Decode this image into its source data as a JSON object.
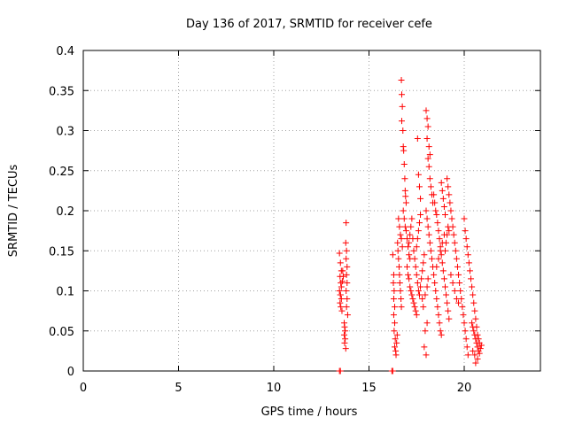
{
  "chart_data": {
    "type": "scatter",
    "title": "Day 136 of 2017, SRMTID for receiver cefe",
    "xlabel": "GPS time / hours",
    "ylabel": "SRMTID / TECUs",
    "xlim": [
      0,
      24
    ],
    "ylim": [
      0,
      0.4
    ],
    "xticks": [
      0,
      5,
      10,
      15,
      20
    ],
    "yticks": [
      0,
      0.05,
      0.1,
      0.15,
      0.2,
      0.25,
      0.3,
      0.35,
      0.4
    ],
    "xtick_labels": [
      "0",
      "5",
      "10",
      "15",
      "20"
    ],
    "ytick_labels": [
      "0",
      "0.05",
      "0.1",
      "0.15",
      "0.2",
      "0.25",
      "0.3",
      "0.35",
      "0.4"
    ],
    "grid": true,
    "marker_color": "#ff0000",
    "marker": "plus",
    "series": [
      {
        "points": [
          [
            13.45,
            0.0
          ],
          [
            13.5,
            0.0
          ],
          [
            16.2,
            0.0
          ],
          [
            16.25,
            0.0
          ],
          [
            13.45,
            0.147
          ],
          [
            13.5,
            0.135
          ],
          [
            13.55,
            0.125
          ],
          [
            13.48,
            0.118
          ],
          [
            13.52,
            0.11
          ],
          [
            13.55,
            0.105
          ],
          [
            13.45,
            0.1
          ],
          [
            13.5,
            0.095
          ],
          [
            13.55,
            0.09
          ],
          [
            13.48,
            0.085
          ],
          [
            13.52,
            0.08
          ],
          [
            13.58,
            0.075
          ],
          [
            13.5,
            0.095
          ],
          [
            13.6,
            0.112
          ],
          [
            13.62,
            0.125
          ],
          [
            13.65,
            0.118
          ],
          [
            13.7,
            0.06
          ],
          [
            13.72,
            0.055
          ],
          [
            13.75,
            0.05
          ],
          [
            13.7,
            0.045
          ],
          [
            13.75,
            0.04
          ],
          [
            13.72,
            0.035
          ],
          [
            13.78,
            0.028
          ],
          [
            13.8,
            0.185
          ],
          [
            13.78,
            0.16
          ],
          [
            13.82,
            0.15
          ],
          [
            13.8,
            0.14
          ],
          [
            13.85,
            0.13
          ],
          [
            13.82,
            0.12
          ],
          [
            13.85,
            0.11
          ],
          [
            13.8,
            0.1
          ],
          [
            13.85,
            0.09
          ],
          [
            13.82,
            0.08
          ],
          [
            13.88,
            0.07
          ],
          [
            16.25,
            0.145
          ],
          [
            16.3,
            0.12
          ],
          [
            16.28,
            0.11
          ],
          [
            16.32,
            0.1
          ],
          [
            16.3,
            0.09
          ],
          [
            16.35,
            0.08
          ],
          [
            16.3,
            0.07
          ],
          [
            16.35,
            0.06
          ],
          [
            16.32,
            0.05
          ],
          [
            16.38,
            0.04
          ],
          [
            16.35,
            0.03
          ],
          [
            16.4,
            0.025
          ],
          [
            16.42,
            0.02
          ],
          [
            16.45,
            0.035
          ],
          [
            16.48,
            0.045
          ],
          [
            16.5,
            0.16
          ],
          [
            16.52,
            0.15
          ],
          [
            16.55,
            0.14
          ],
          [
            16.58,
            0.13
          ],
          [
            16.6,
            0.12
          ],
          [
            16.62,
            0.11
          ],
          [
            16.65,
            0.1
          ],
          [
            16.68,
            0.09
          ],
          [
            16.7,
            0.08
          ],
          [
            16.55,
            0.19
          ],
          [
            16.6,
            0.18
          ],
          [
            16.65,
            0.17
          ],
          [
            16.7,
            0.165
          ],
          [
            16.75,
            0.155
          ],
          [
            16.7,
            0.363
          ],
          [
            16.72,
            0.345
          ],
          [
            16.75,
            0.33
          ],
          [
            16.72,
            0.312
          ],
          [
            16.78,
            0.3
          ],
          [
            16.8,
            0.28
          ],
          [
            16.82,
            0.275
          ],
          [
            16.85,
            0.258
          ],
          [
            16.88,
            0.24
          ],
          [
            16.9,
            0.225
          ],
          [
            16.92,
            0.218
          ],
          [
            16.95,
            0.21
          ],
          [
            16.8,
            0.2
          ],
          [
            16.85,
            0.19
          ],
          [
            16.9,
            0.18
          ],
          [
            16.95,
            0.175
          ],
          [
            17.0,
            0.165
          ],
          [
            17.05,
            0.155
          ],
          [
            17.1,
            0.145
          ],
          [
            17.15,
            0.14
          ],
          [
            17.0,
            0.13
          ],
          [
            17.05,
            0.12
          ],
          [
            17.1,
            0.115
          ],
          [
            17.15,
            0.105
          ],
          [
            17.2,
            0.1
          ],
          [
            17.25,
            0.095
          ],
          [
            17.3,
            0.09
          ],
          [
            17.35,
            0.085
          ],
          [
            17.4,
            0.08
          ],
          [
            17.45,
            0.075
          ],
          [
            17.5,
            0.07
          ],
          [
            17.1,
            0.16
          ],
          [
            17.15,
            0.17
          ],
          [
            17.2,
            0.18
          ],
          [
            17.25,
            0.19
          ],
          [
            17.3,
            0.165
          ],
          [
            17.35,
            0.15
          ],
          [
            17.4,
            0.14
          ],
          [
            17.45,
            0.13
          ],
          [
            17.5,
            0.12
          ],
          [
            17.55,
            0.11
          ],
          [
            17.6,
            0.1
          ],
          [
            17.65,
            0.095
          ],
          [
            17.7,
            0.105
          ],
          [
            17.75,
            0.115
          ],
          [
            17.8,
            0.125
          ],
          [
            17.85,
            0.135
          ],
          [
            17.9,
            0.145
          ],
          [
            17.5,
            0.155
          ],
          [
            17.55,
            0.165
          ],
          [
            17.6,
            0.175
          ],
          [
            17.65,
            0.185
          ],
          [
            17.7,
            0.195
          ],
          [
            17.55,
            0.29
          ],
          [
            17.6,
            0.245
          ],
          [
            17.65,
            0.23
          ],
          [
            17.7,
            0.215
          ],
          [
            18.0,
            0.325
          ],
          [
            18.05,
            0.315
          ],
          [
            18.1,
            0.305
          ],
          [
            18.05,
            0.29
          ],
          [
            18.15,
            0.28
          ],
          [
            18.2,
            0.27
          ],
          [
            18.1,
            0.265
          ],
          [
            18.15,
            0.255
          ],
          [
            18.2,
            0.24
          ],
          [
            18.25,
            0.23
          ],
          [
            18.3,
            0.22
          ],
          [
            18.35,
            0.21
          ],
          [
            18.0,
            0.2
          ],
          [
            18.05,
            0.19
          ],
          [
            18.1,
            0.18
          ],
          [
            18.15,
            0.17
          ],
          [
            18.2,
            0.16
          ],
          [
            18.25,
            0.15
          ],
          [
            18.3,
            0.14
          ],
          [
            18.35,
            0.13
          ],
          [
            18.4,
            0.12
          ],
          [
            18.45,
            0.11
          ],
          [
            18.5,
            0.1
          ],
          [
            18.55,
            0.09
          ],
          [
            18.6,
            0.08
          ],
          [
            18.65,
            0.07
          ],
          [
            18.7,
            0.06
          ],
          [
            18.75,
            0.05
          ],
          [
            18.8,
            0.045
          ],
          [
            17.9,
            0.03
          ],
          [
            18.0,
            0.02
          ],
          [
            17.95,
            0.05
          ],
          [
            18.05,
            0.06
          ],
          [
            18.4,
            0.22
          ],
          [
            18.45,
            0.21
          ],
          [
            18.5,
            0.2
          ],
          [
            18.55,
            0.195
          ],
          [
            18.6,
            0.185
          ],
          [
            18.65,
            0.175
          ],
          [
            18.7,
            0.165
          ],
          [
            18.75,
            0.155
          ],
          [
            18.8,
            0.145
          ],
          [
            18.85,
            0.135
          ],
          [
            18.9,
            0.125
          ],
          [
            18.95,
            0.115
          ],
          [
            19.0,
            0.105
          ],
          [
            19.05,
            0.095
          ],
          [
            19.1,
            0.085
          ],
          [
            19.15,
            0.075
          ],
          [
            19.2,
            0.065
          ],
          [
            18.8,
            0.235
          ],
          [
            18.85,
            0.225
          ],
          [
            18.9,
            0.215
          ],
          [
            18.95,
            0.205
          ],
          [
            19.0,
            0.195
          ],
          [
            19.1,
            0.24
          ],
          [
            19.15,
            0.23
          ],
          [
            19.2,
            0.22
          ],
          [
            19.25,
            0.21
          ],
          [
            19.3,
            0.2
          ],
          [
            19.35,
            0.19
          ],
          [
            19.4,
            0.18
          ],
          [
            19.45,
            0.17
          ],
          [
            19.5,
            0.16
          ],
          [
            19.55,
            0.15
          ],
          [
            19.6,
            0.14
          ],
          [
            19.65,
            0.13
          ],
          [
            19.7,
            0.12
          ],
          [
            19.75,
            0.11
          ],
          [
            19.8,
            0.1
          ],
          [
            19.85,
            0.09
          ],
          [
            19.9,
            0.08
          ],
          [
            19.95,
            0.07
          ],
          [
            20.0,
            0.06
          ],
          [
            20.05,
            0.05
          ],
          [
            20.1,
            0.04
          ],
          [
            20.15,
            0.03
          ],
          [
            20.2,
            0.02
          ],
          [
            19.3,
            0.12
          ],
          [
            19.4,
            0.11
          ],
          [
            19.5,
            0.1
          ],
          [
            19.6,
            0.09
          ],
          [
            19.7,
            0.085
          ],
          [
            20.0,
            0.19
          ],
          [
            20.05,
            0.175
          ],
          [
            20.1,
            0.165
          ],
          [
            20.15,
            0.155
          ],
          [
            20.2,
            0.145
          ],
          [
            20.25,
            0.135
          ],
          [
            20.3,
            0.125
          ],
          [
            20.35,
            0.115
          ],
          [
            20.4,
            0.105
          ],
          [
            20.45,
            0.095
          ],
          [
            20.5,
            0.085
          ],
          [
            20.55,
            0.075
          ],
          [
            20.6,
            0.065
          ],
          [
            20.65,
            0.055
          ],
          [
            20.7,
            0.045
          ],
          [
            20.75,
            0.04
          ],
          [
            20.8,
            0.035
          ],
          [
            20.4,
            0.06
          ],
          [
            20.45,
            0.055
          ],
          [
            20.5,
            0.05
          ],
          [
            20.55,
            0.045
          ],
          [
            20.6,
            0.04
          ],
          [
            20.65,
            0.035
          ],
          [
            20.7,
            0.03
          ],
          [
            20.75,
            0.025
          ],
          [
            20.8,
            0.022
          ],
          [
            20.85,
            0.028
          ],
          [
            20.9,
            0.032
          ],
          [
            20.6,
            0.01
          ],
          [
            20.7,
            0.015
          ],
          [
            20.55,
            0.02
          ],
          [
            20.45,
            0.025
          ],
          [
            19.0,
            0.15
          ],
          [
            19.05,
            0.16
          ],
          [
            19.1,
            0.17
          ],
          [
            19.15,
            0.18
          ],
          [
            19.2,
            0.175
          ],
          [
            18.55,
            0.13
          ],
          [
            18.65,
            0.14
          ],
          [
            18.75,
            0.15
          ],
          [
            18.85,
            0.16
          ],
          [
            18.95,
            0.17
          ],
          [
            17.8,
            0.09
          ],
          [
            17.85,
            0.08
          ],
          [
            17.95,
            0.095
          ],
          [
            18.05,
            0.105
          ],
          [
            18.1,
            0.115
          ]
        ]
      }
    ]
  }
}
